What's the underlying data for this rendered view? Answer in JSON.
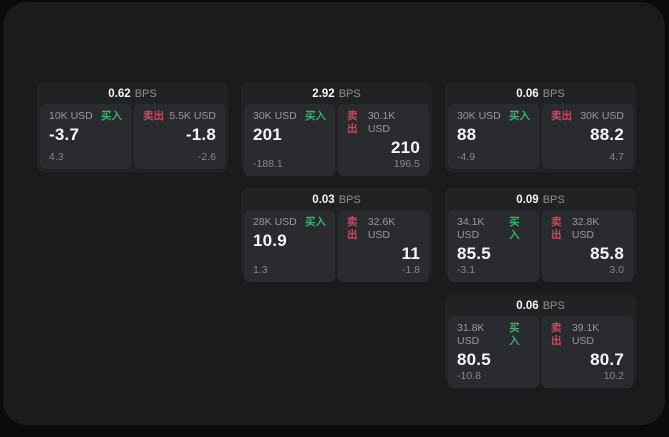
{
  "labels": {
    "bps": "BPS",
    "buy": "买入",
    "sell": "卖出"
  },
  "colors": {
    "buy_green": "#36b26b",
    "sell_red": "#c94a5e",
    "window_bg": "#1a1b1d",
    "card_bg": "#212224",
    "panel_bg": "#2a2b2e"
  },
  "cards": [
    {
      "bps": "0.62",
      "buy": {
        "amount": "10K USD",
        "price": "-3.7",
        "delta": "4.3"
      },
      "sell": {
        "amount": "5.5K USD",
        "price": "-1.8",
        "delta": "-2.6"
      }
    },
    {
      "bps": "2.92",
      "buy": {
        "amount": "30K USD",
        "price": "201",
        "delta": "-188.1"
      },
      "sell": {
        "amount": "30.1K USD",
        "price": "210",
        "delta": "196.5"
      }
    },
    {
      "bps": "0.06",
      "buy": {
        "amount": "30K USD",
        "price": "88",
        "delta": "-4.9"
      },
      "sell": {
        "amount": "30K USD",
        "price": "88.2",
        "delta": "4.7"
      }
    },
    {
      "bps": "0.03",
      "buy": {
        "amount": "28K USD",
        "price": "10.9",
        "delta": "1.3"
      },
      "sell": {
        "amount": "32.6K USD",
        "price": "11",
        "delta": "-1.8"
      }
    },
    {
      "bps": "0.09",
      "buy": {
        "amount": "34.1K USD",
        "price": "85.5",
        "delta": "-3.1"
      },
      "sell": {
        "amount": "32.8K USD",
        "price": "85.8",
        "delta": "3.0"
      }
    },
    {
      "bps": "0.06",
      "buy": {
        "amount": "31.8K USD",
        "price": "80.5",
        "delta": "-10.8"
      },
      "sell": {
        "amount": "39.1K USD",
        "price": "80.7",
        "delta": "10.2"
      }
    }
  ]
}
